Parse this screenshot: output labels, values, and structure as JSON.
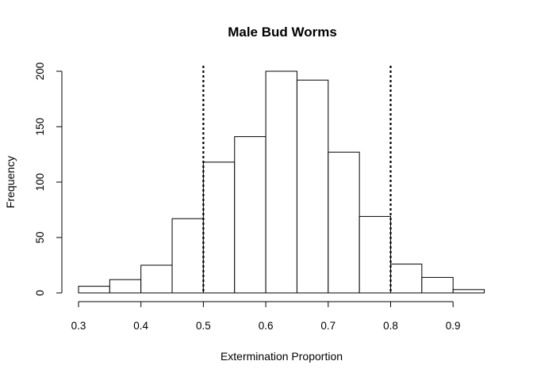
{
  "chart_data": {
    "type": "bar",
    "title": "Male Bud Worms",
    "xlabel": "Extermination Proportion",
    "ylabel": "Frequency",
    "bins": [
      {
        "x0": 0.3,
        "x1": 0.35,
        "count": 6
      },
      {
        "x0": 0.35,
        "x1": 0.4,
        "count": 12
      },
      {
        "x0": 0.4,
        "x1": 0.45,
        "count": 25
      },
      {
        "x0": 0.45,
        "x1": 0.5,
        "count": 67
      },
      {
        "x0": 0.5,
        "x1": 0.55,
        "count": 118
      },
      {
        "x0": 0.55,
        "x1": 0.6,
        "count": 141
      },
      {
        "x0": 0.6,
        "x1": 0.65,
        "count": 200
      },
      {
        "x0": 0.65,
        "x1": 0.7,
        "count": 192
      },
      {
        "x0": 0.7,
        "x1": 0.75,
        "count": 127
      },
      {
        "x0": 0.75,
        "x1": 0.8,
        "count": 69
      },
      {
        "x0": 0.8,
        "x1": 0.85,
        "count": 26
      },
      {
        "x0": 0.85,
        "x1": 0.9,
        "count": 14
      },
      {
        "x0": 0.9,
        "x1": 0.95,
        "count": 3
      }
    ],
    "reference_lines": [
      0.5,
      0.8
    ],
    "xlim": [
      0.3,
      0.95
    ],
    "ylim": [
      0,
      200
    ],
    "x_ticks": [
      "0.3",
      "0.4",
      "0.5",
      "0.6",
      "0.7",
      "0.8",
      "0.9"
    ],
    "y_ticks": [
      "0",
      "50",
      "100",
      "150",
      "200"
    ],
    "grid": false,
    "colors": {
      "bar_fill": "#ffffff",
      "bar_stroke": "#000000",
      "line": "#000000"
    }
  }
}
